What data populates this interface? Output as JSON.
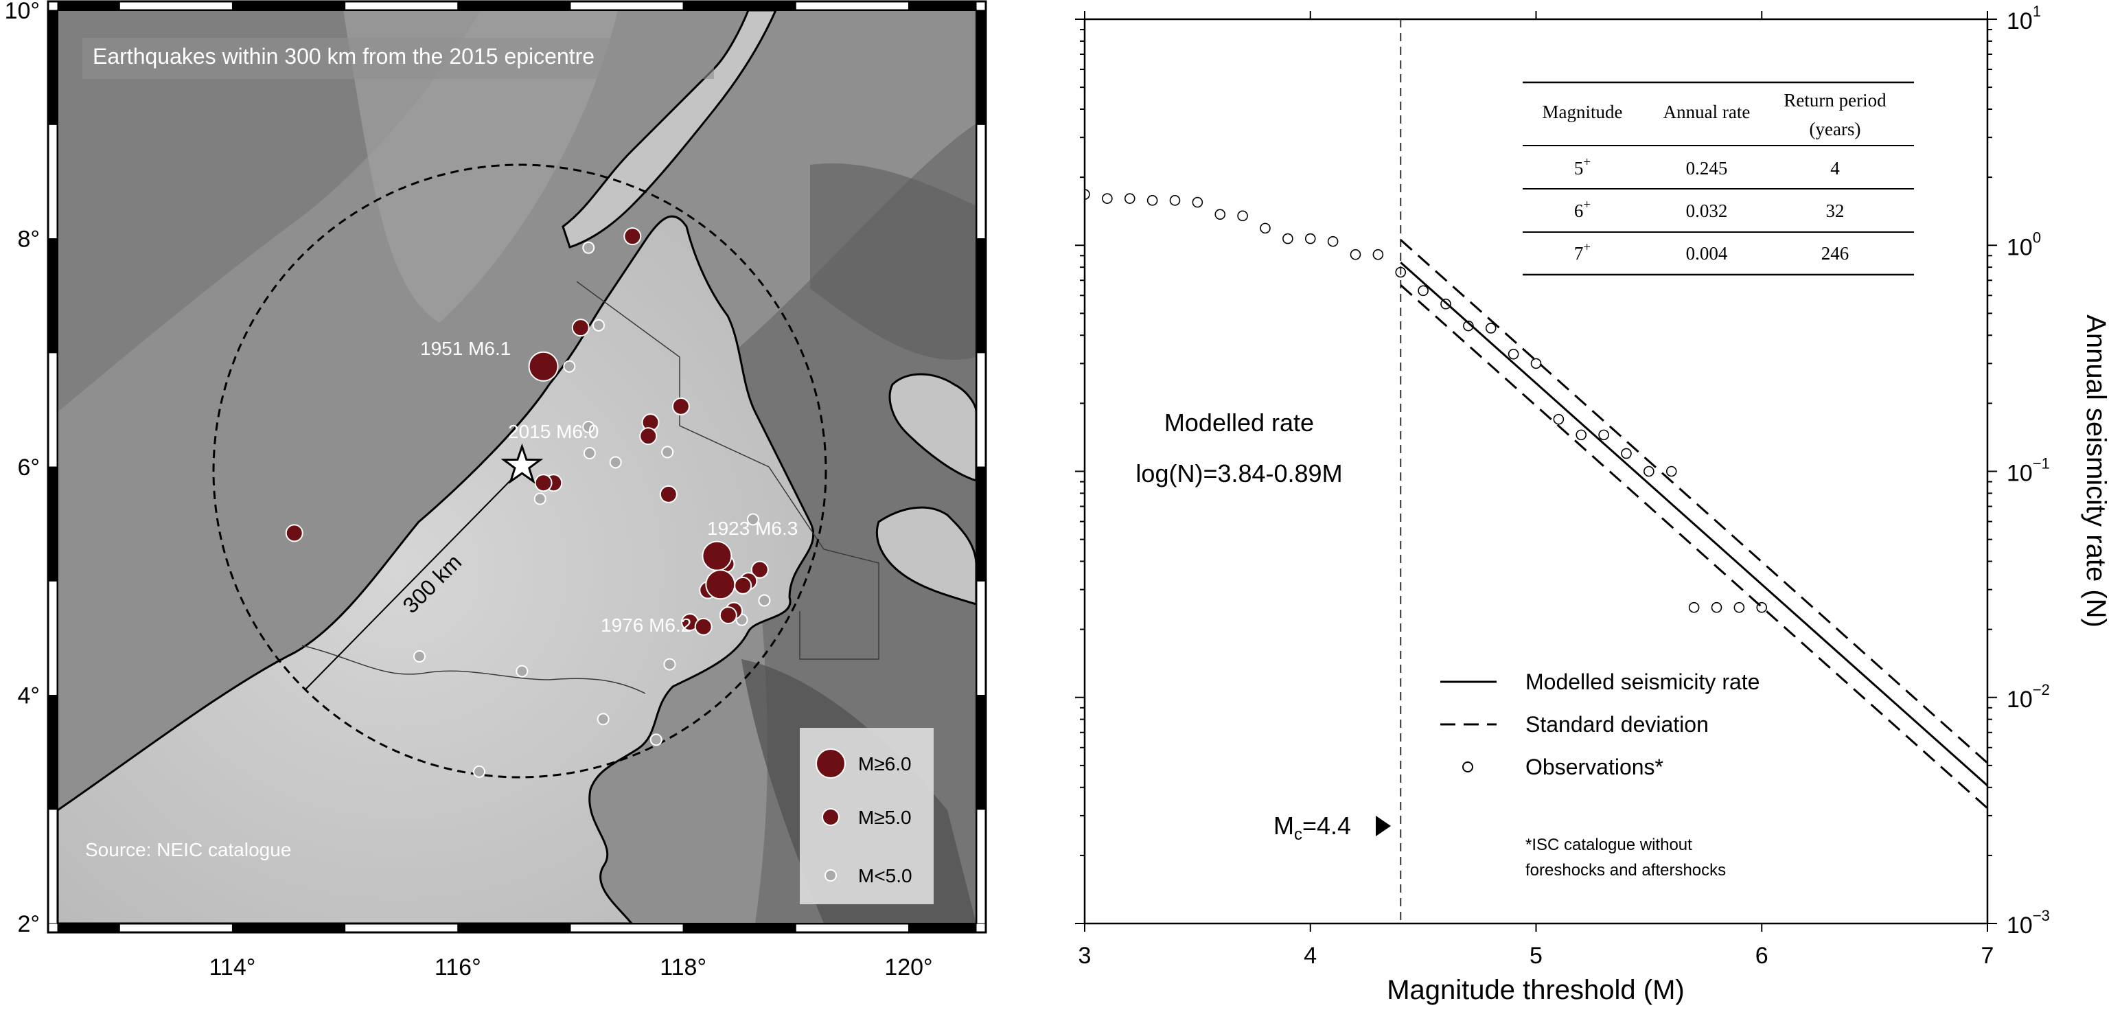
{
  "map": {
    "title": "Earthquakes within 300 km from the 2015 epicentre",
    "source": "Source: NEIC catalogue",
    "radius_label": "300 km",
    "lon_ticks": [
      "114°",
      "116°",
      "118°",
      "120°"
    ],
    "lat_ticks": [
      "2°",
      "4°",
      "6°",
      "8°",
      "10°"
    ],
    "legend": [
      {
        "label": "M≥6.0",
        "class": "large",
        "color": "#6b0f14"
      },
      {
        "label": "M≥5.0",
        "class": "medium",
        "color": "#6b0f14"
      },
      {
        "label": "M<5.0",
        "class": "small",
        "color": "#a9a9a9"
      }
    ],
    "annotations": [
      "1951 M6.1",
      "2015 M6.0",
      "1923 M6.3",
      "1976 M6.2"
    ],
    "events": [
      {
        "lon": 116.76,
        "lat": 6.88,
        "mag": "large"
      },
      {
        "lon": 118.3,
        "lat": 5.22,
        "mag": "large"
      },
      {
        "lon": 118.33,
        "lat": 4.97,
        "mag": "large"
      },
      {
        "lon": 117.55,
        "lat": 8.02,
        "mag": "medium"
      },
      {
        "lon": 117.09,
        "lat": 7.22,
        "mag": "medium"
      },
      {
        "lon": 117.98,
        "lat": 6.53,
        "mag": "medium"
      },
      {
        "lon": 117.71,
        "lat": 6.39,
        "mag": "medium"
      },
      {
        "lon": 117.69,
        "lat": 6.27,
        "mag": "medium"
      },
      {
        "lon": 116.85,
        "lat": 5.86,
        "mag": "medium"
      },
      {
        "lon": 116.76,
        "lat": 5.86,
        "mag": "medium"
      },
      {
        "lon": 117.87,
        "lat": 5.76,
        "mag": "medium"
      },
      {
        "lon": 114.55,
        "lat": 5.42,
        "mag": "medium"
      },
      {
        "lon": 118.38,
        "lat": 5.15,
        "mag": "medium"
      },
      {
        "lon": 118.68,
        "lat": 5.1,
        "mag": "medium"
      },
      {
        "lon": 118.58,
        "lat": 5.0,
        "mag": "medium"
      },
      {
        "lon": 118.53,
        "lat": 4.96,
        "mag": "medium"
      },
      {
        "lon": 118.22,
        "lat": 4.92,
        "mag": "medium"
      },
      {
        "lon": 118.45,
        "lat": 4.74,
        "mag": "medium"
      },
      {
        "lon": 118.4,
        "lat": 4.7,
        "mag": "medium"
      },
      {
        "lon": 118.06,
        "lat": 4.64,
        "mag": "medium"
      },
      {
        "lon": 118.18,
        "lat": 4.6,
        "mag": "medium"
      },
      {
        "lon": 117.16,
        "lat": 7.92,
        "mag": "small"
      },
      {
        "lon": 117.25,
        "lat": 7.24,
        "mag": "small"
      },
      {
        "lon": 116.99,
        "lat": 6.88,
        "mag": "small"
      },
      {
        "lon": 117.16,
        "lat": 6.35,
        "mag": "small"
      },
      {
        "lon": 117.17,
        "lat": 6.12,
        "mag": "small"
      },
      {
        "lon": 117.86,
        "lat": 6.13,
        "mag": "small"
      },
      {
        "lon": 117.4,
        "lat": 6.04,
        "mag": "small"
      },
      {
        "lon": 116.73,
        "lat": 5.72,
        "mag": "small"
      },
      {
        "lon": 118.62,
        "lat": 5.54,
        "mag": "small"
      },
      {
        "lon": 118.72,
        "lat": 4.83,
        "mag": "small"
      },
      {
        "lon": 118.52,
        "lat": 4.66,
        "mag": "small"
      },
      {
        "lon": 115.66,
        "lat": 4.34,
        "mag": "small"
      },
      {
        "lon": 116.57,
        "lat": 4.21,
        "mag": "small"
      },
      {
        "lon": 117.88,
        "lat": 4.27,
        "mag": "small"
      },
      {
        "lon": 117.29,
        "lat": 3.79,
        "mag": "small"
      },
      {
        "lon": 117.76,
        "lat": 3.61,
        "mag": "small"
      },
      {
        "lon": 116.19,
        "lat": 3.33,
        "mag": "small"
      }
    ],
    "epicentre": {
      "lon": 116.57,
      "lat": 6.01
    },
    "colors": {
      "sea_dark": "#7a7a7a",
      "sea": "#9a9a9a",
      "land": "#c4c4c4",
      "coast": "#000000",
      "event": "#6b0f14",
      "small_event": "#a9a9a9"
    }
  },
  "chart_data": {
    "type": "scatter",
    "xlabel": "Magnitude threshold (M)",
    "ylabel": "Annual seismicity rate (N)",
    "xlim": [
      3,
      7
    ],
    "ylim": [
      0.001,
      10
    ],
    "yscale": "log",
    "x_ticks": [
      "3",
      "4",
      "5",
      "6",
      "7"
    ],
    "y_ticks": [
      {
        "base": "10",
        "exp": "1",
        "value": 10
      },
      {
        "base": "10",
        "exp": "0",
        "value": 1
      },
      {
        "base": "10",
        "exp": "−1",
        "value": 0.1
      },
      {
        "base": "10",
        "exp": "−2",
        "value": 0.01
      },
      {
        "base": "10",
        "exp": "−3",
        "value": 0.001
      }
    ],
    "observations": {
      "x": [
        3.0,
        3.1,
        3.2,
        3.3,
        3.4,
        3.5,
        3.6,
        3.7,
        3.8,
        3.9,
        4.0,
        4.1,
        4.2,
        4.3,
        4.4,
        4.5,
        4.6,
        4.7,
        4.8,
        4.9,
        5.0,
        5.1,
        5.2,
        5.3,
        5.4,
        5.5,
        5.6,
        5.7,
        5.8,
        5.9,
        6.0
      ],
      "y": [
        1.68,
        1.61,
        1.61,
        1.58,
        1.58,
        1.55,
        1.37,
        1.35,
        1.19,
        1.07,
        1.07,
        1.04,
        0.91,
        0.91,
        0.76,
        0.63,
        0.55,
        0.44,
        0.43,
        0.33,
        0.3,
        0.17,
        0.145,
        0.145,
        0.12,
        0.1,
        0.1,
        0.025,
        0.025,
        0.025,
        0.025
      ]
    },
    "model": {
      "label": "log(N)=3.84-0.89M",
      "intercept": 3.84,
      "slope": -0.89,
      "x_start": 4.4,
      "x_end": 7.0
    },
    "std_dev": {
      "upper_offset": 0.1,
      "lower_offset": -0.1
    },
    "mc": {
      "value": 4.4,
      "label_main": "M",
      "label_sub": "c",
      "label_value": "=4.4"
    },
    "modelled_rate_title": "Modelled rate",
    "legend": [
      {
        "label": "Modelled seismicity rate",
        "style": "solid"
      },
      {
        "label": "Standard deviation",
        "style": "dashed"
      },
      {
        "label": "Observations*",
        "style": "circle"
      }
    ],
    "footnote": [
      "*ISC catalogue without",
      "foreshocks and aftershocks"
    ],
    "table": {
      "headers": [
        "Magnitude",
        "Annual rate",
        "Return period",
        "(years)"
      ],
      "rows": [
        {
          "magnitude": "5",
          "sup": "+",
          "rate": "0.245",
          "period": "4"
        },
        {
          "magnitude": "6",
          "sup": "+",
          "rate": "0.032",
          "period": "32"
        },
        {
          "magnitude": "7",
          "sup": "+",
          "rate": "0.004",
          "period": "246"
        }
      ]
    }
  }
}
